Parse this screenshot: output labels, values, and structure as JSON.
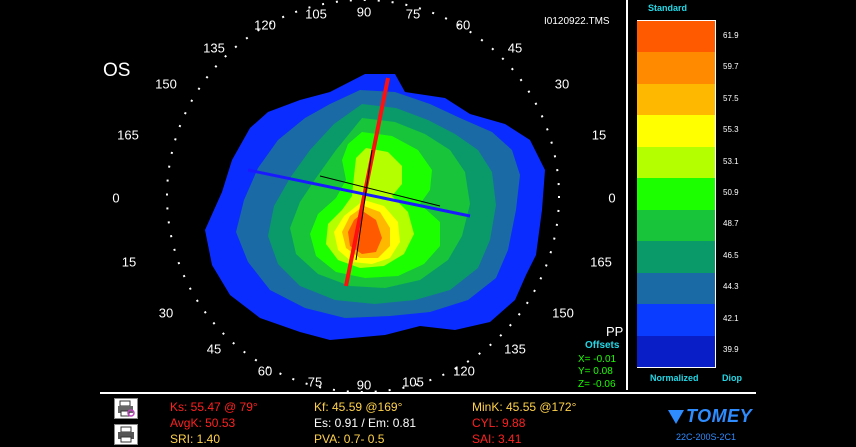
{
  "file_name": "I0120922.TMS",
  "eye": "OS",
  "map": {
    "mode": "PP",
    "offsets_label": "Offsets",
    "offset_x": "X= -0.01",
    "offset_y": "Y=  0.08",
    "offset_z": "Z= -0.06",
    "degree_labels": [
      "90",
      "75",
      "60",
      "45",
      "30",
      "15",
      "0",
      "165",
      "150",
      "135",
      "120",
      "105",
      "90",
      "75",
      "60",
      "45",
      "30",
      "15",
      "0",
      "165",
      "150",
      "135",
      "120",
      "105"
    ]
  },
  "scale": {
    "title": "Standard",
    "bottom_left": "Normalized",
    "bottom_right": "Diop",
    "values": [
      "61.9",
      "59.7",
      "57.5",
      "55.3",
      "53.1",
      "50.9",
      "48.7",
      "46.5",
      "44.3",
      "42.1",
      "39.9"
    ],
    "colors": [
      "#ff5a00",
      "#ff8a00",
      "#ffb800",
      "#ffff00",
      "#b4ff00",
      "#1cff00",
      "#17c43a",
      "#0a9a6a",
      "#1a6aa5",
      "#0a3cff",
      "#0a1ec8"
    ]
  },
  "stats": {
    "ks": "Ks: 55.47 @ 79°",
    "kf": "Kf: 45.59 @169°",
    "mink": "MinK: 45.55 @172°",
    "avgk": "AvgK: 50.53",
    "es_em": "Es: 0.91 / Em: 0.81",
    "cyl": "CYL:  9.88",
    "sri": "SRI: 1.40",
    "pva": "PVA:  0.7-  0.5",
    "sai": "SAI: 3.41"
  },
  "colors": {
    "red_text": "#ff2020",
    "yellow_text": "#ffd24a",
    "white_text": "#ffffff",
    "brand": "#2f8cff"
  },
  "brand": {
    "name": "TOMEY",
    "model": "22C-200S-2C1"
  },
  "icons": [
    "print-icon",
    "print-preview-icon"
  ]
}
